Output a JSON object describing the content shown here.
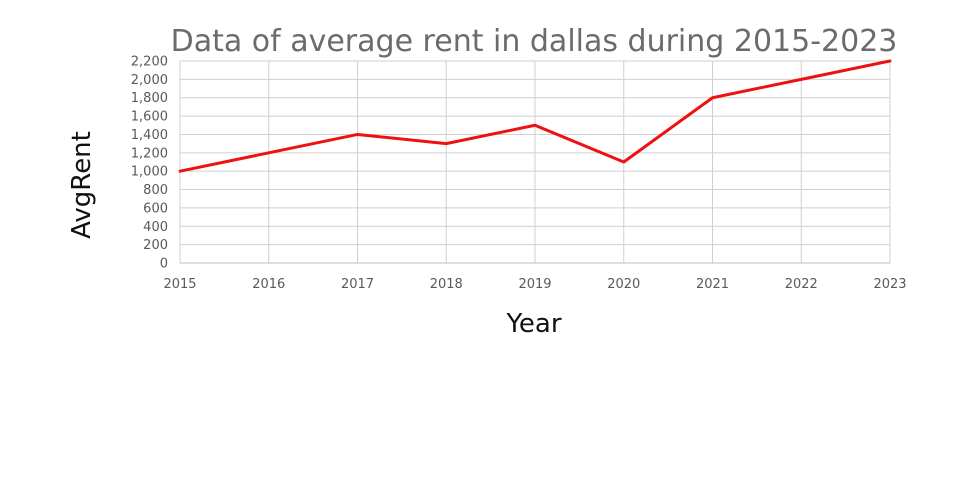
{
  "chart_data": {
    "type": "line",
    "title": "Data of average rent in dallas during 2015-2023",
    "xlabel": "Year",
    "ylabel": "AvgRent",
    "x": [
      "2015",
      "2016",
      "2017",
      "2018",
      "2019",
      "2020",
      "2021",
      "2022",
      "2023"
    ],
    "series": [
      {
        "values": [
          1000,
          1200,
          1400,
          1300,
          1500,
          1100,
          1800,
          2000,
          2200
        ],
        "color": "#ee1111"
      }
    ],
    "ylim": [
      0,
      2200
    ],
    "yticks": [
      "0",
      "200",
      "400",
      "600",
      "800",
      "1,000",
      "1,200",
      "1,400",
      "1,600",
      "1,800",
      "2,000",
      "2,200"
    ],
    "grid": true,
    "legend": "none"
  }
}
